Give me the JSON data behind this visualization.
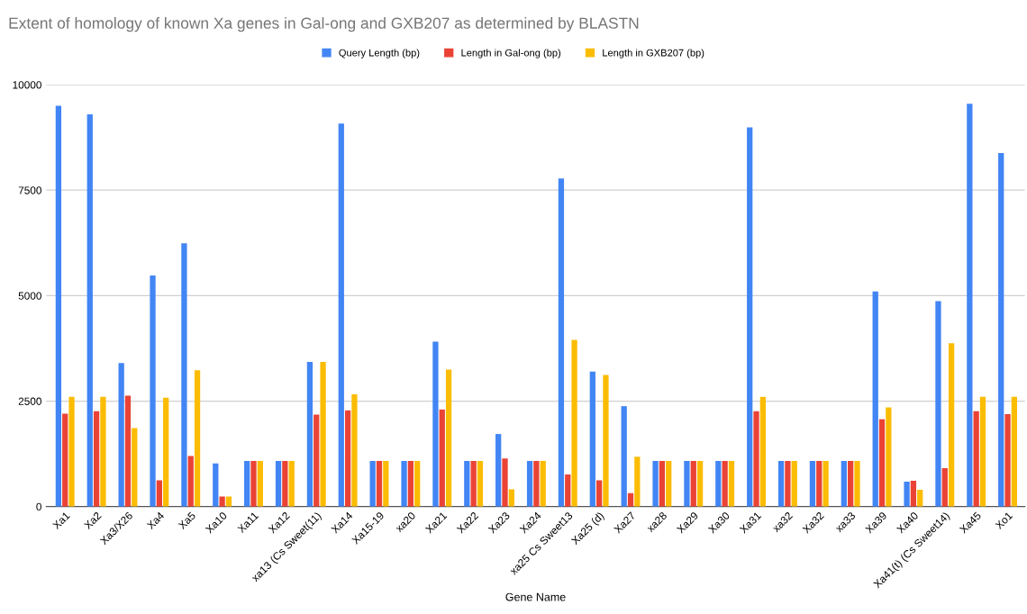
{
  "chart_data": {
    "type": "bar",
    "title": "Extent of homology of known Xa genes in Gal-ong and GXB207 as determined by BLASTN",
    "xlabel": "Gene Name",
    "categories": [
      "Xa1",
      "Xa2",
      "Xa3/X26",
      "Xa4",
      "Xa5",
      "Xa10",
      "Xa11",
      "Xa12",
      "xa13 (Cs Sweet(11)",
      "Xa14",
      "Xa15-19",
      "xa20",
      "Xa21",
      "Xa22",
      "Xa23",
      "Xa24",
      "xa25 Cs Sweet13",
      "Xa25 (d)",
      "Xa27",
      "xa28",
      "Xa29",
      "Xa30",
      "Xa31",
      "xa32",
      "Xa32",
      "xa33",
      "Xa39",
      "Xa40",
      "Xa41(t) (Cs Sweet14)",
      "Xa45",
      "Xo1"
    ],
    "series": [
      {
        "name": "Query Length (bp)",
        "color": "#4285f4",
        "values": [
          9500,
          9300,
          3400,
          5480,
          6240,
          1020,
          1080,
          1080,
          3430,
          9080,
          1080,
          1080,
          3910,
          1080,
          1720,
          1080,
          7780,
          3200,
          2380,
          1080,
          1080,
          1080,
          8990,
          1080,
          1080,
          1080,
          5100,
          590,
          4870,
          9550,
          8380
        ]
      },
      {
        "name": "Length in Gal-ong (bp)",
        "color": "#ea4335",
        "values": [
          2200,
          2260,
          2630,
          620,
          1200,
          240,
          1080,
          1080,
          2180,
          2280,
          1080,
          1080,
          2300,
          1080,
          1140,
          1080,
          760,
          620,
          320,
          1080,
          1080,
          1080,
          2260,
          1080,
          1080,
          1080,
          2070,
          610,
          910,
          2260,
          2190
        ]
      },
      {
        "name": "Length in GXB207 (bp)",
        "color": "#fbbc04",
        "values": [
          2600,
          2600,
          1860,
          2580,
          3230,
          240,
          1080,
          1080,
          3430,
          2660,
          1080,
          1080,
          3250,
          1080,
          410,
          1080,
          3950,
          3120,
          1180,
          1080,
          1080,
          1080,
          2600,
          1080,
          1080,
          1080,
          2350,
          400,
          3870,
          2600,
          2600
        ]
      }
    ],
    "ylim": [
      0,
      10000
    ],
    "yticks": [
      0,
      2500,
      5000,
      7500,
      10000
    ],
    "grid": "y",
    "legend": "top"
  }
}
